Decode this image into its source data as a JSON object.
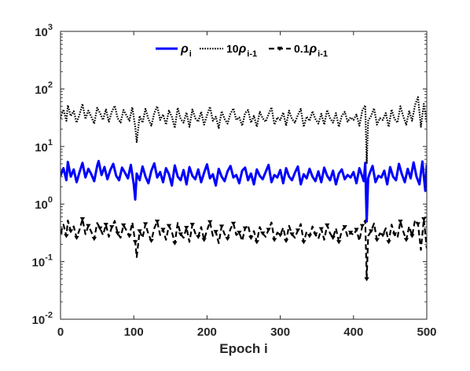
{
  "chart_data": {
    "type": "line",
    "title": "",
    "xlabel": "Epoch i",
    "ylabel": "",
    "xlim": [
      0,
      500
    ],
    "ylim": [
      0.01,
      1000
    ],
    "yscale": "log",
    "grid": false,
    "legend_position": "top-center",
    "x_ticks": [
      "0",
      "100",
      "200",
      "300",
      "400",
      "500"
    ],
    "y_ticks": [
      {
        "base": "10",
        "exp": "-2"
      },
      {
        "base": "10",
        "exp": "-1"
      },
      {
        "base": "10",
        "exp": "0"
      },
      {
        "base": "10",
        "exp": "1"
      },
      {
        "base": "10",
        "exp": "2"
      },
      {
        "base": "10",
        "exp": "3"
      }
    ],
    "series": [
      {
        "name": "ρ_i",
        "legend_symbol": "ρ",
        "legend_sub": "i",
        "legend_prefix": "",
        "color": "#0000ff",
        "style": "solid",
        "width": 3,
        "marker": "none",
        "typical_value": 3.0,
        "x": [
          0,
          4,
          8,
          10,
          14,
          18,
          22,
          26,
          30,
          34,
          38,
          42,
          46,
          50,
          52,
          56,
          60,
          64,
          68,
          72,
          76,
          80,
          84,
          88,
          92,
          96,
          100,
          102,
          104,
          108,
          112,
          116,
          120,
          124,
          128,
          132,
          136,
          140,
          144,
          148,
          152,
          156,
          160,
          164,
          168,
          172,
          176,
          180,
          184,
          188,
          192,
          196,
          200,
          204,
          208,
          212,
          216,
          220,
          224,
          228,
          232,
          236,
          240,
          244,
          248,
          252,
          256,
          260,
          264,
          268,
          272,
          276,
          280,
          284,
          288,
          292,
          296,
          300,
          304,
          308,
          312,
          316,
          320,
          324,
          328,
          332,
          336,
          340,
          344,
          348,
          352,
          356,
          360,
          364,
          368,
          372,
          376,
          380,
          384,
          388,
          392,
          396,
          400,
          404,
          408,
          412,
          414,
          416,
          418,
          420,
          422,
          426,
          430,
          434,
          438,
          442,
          446,
          450,
          454,
          458,
          462,
          466,
          470,
          474,
          478,
          482,
          486,
          490,
          494,
          498,
          500
        ],
        "y": [
          3.1,
          4.2,
          2.6,
          5.4,
          3.0,
          4.0,
          2.4,
          3.6,
          5.2,
          2.9,
          4.1,
          3.3,
          2.5,
          4.6,
          5.6,
          3.2,
          4.4,
          2.7,
          3.9,
          5.0,
          3.1,
          2.6,
          4.3,
          3.5,
          2.8,
          4.8,
          2.2,
          1.2,
          3.4,
          2.6,
          4.5,
          3.0,
          2.3,
          3.8,
          5.1,
          2.9,
          3.6,
          2.4,
          4.2,
          3.3,
          2.1,
          4.7,
          3.0,
          2.6,
          3.9,
          2.2,
          4.4,
          3.1,
          2.7,
          4.0,
          2.4,
          3.5,
          4.9,
          2.8,
          3.3,
          2.1,
          4.1,
          3.0,
          2.5,
          3.7,
          4.6,
          2.9,
          3.2,
          2.3,
          3.8,
          4.3,
          2.6,
          3.4,
          2.2,
          4.0,
          3.1,
          2.7,
          3.6,
          4.8,
          2.4,
          3.2,
          2.9,
          3.9,
          2.3,
          4.2,
          3.0,
          2.6,
          3.5,
          4.5,
          2.2,
          3.3,
          2.8,
          4.1,
          3.0,
          2.5,
          3.7,
          2.4,
          4.3,
          3.1,
          2.6,
          3.8,
          2.2,
          3.4,
          4.0,
          2.7,
          3.2,
          2.9,
          3.6,
          2.3,
          4.2,
          3.0,
          2.5,
          5.2,
          0.5,
          2.8,
          3.4,
          4.6,
          2.4,
          3.1,
          2.9,
          3.8,
          2.2,
          4.4,
          3.0,
          2.6,
          5.0,
          3.3,
          2.4,
          4.1,
          2.8,
          5.3,
          3.0,
          2.2,
          5.5,
          1.7,
          4.8
        ]
      },
      {
        "name": "10ρ_{i-1}",
        "legend_symbol": "ρ",
        "legend_sub": "i-1",
        "legend_prefix": "10",
        "color": "#000000",
        "style": "dotted",
        "width": 2.2,
        "marker": "none",
        "typical_value": 30,
        "x": [
          0,
          4,
          8,
          10,
          14,
          18,
          22,
          26,
          30,
          34,
          38,
          42,
          46,
          50,
          54,
          58,
          62,
          66,
          70,
          74,
          78,
          82,
          86,
          90,
          94,
          98,
          102,
          104,
          108,
          112,
          116,
          120,
          124,
          128,
          132,
          136,
          140,
          144,
          148,
          152,
          156,
          160,
          164,
          168,
          172,
          176,
          180,
          184,
          188,
          192,
          196,
          200,
          204,
          208,
          212,
          216,
          220,
          224,
          228,
          232,
          236,
          240,
          244,
          248,
          252,
          256,
          260,
          264,
          268,
          272,
          276,
          280,
          284,
          288,
          292,
          296,
          300,
          304,
          308,
          312,
          316,
          320,
          324,
          328,
          332,
          336,
          340,
          344,
          348,
          352,
          356,
          360,
          364,
          368,
          372,
          376,
          380,
          384,
          388,
          392,
          396,
          400,
          404,
          408,
          412,
          416,
          418,
          420,
          424,
          428,
          432,
          436,
          440,
          444,
          448,
          452,
          456,
          460,
          464,
          468,
          472,
          476,
          480,
          484,
          488,
          492,
          496,
          500
        ],
        "y": [
          31,
          44,
          28,
          52,
          34,
          41,
          26,
          36,
          55,
          30,
          42,
          33,
          25,
          47,
          38,
          29,
          44,
          27,
          40,
          51,
          31,
          26,
          43,
          35,
          28,
          48,
          22,
          12,
          34,
          26,
          45,
          30,
          23,
          38,
          50,
          29,
          36,
          24,
          42,
          33,
          21,
          47,
          30,
          26,
          39,
          22,
          44,
          31,
          27,
          40,
          24,
          35,
          49,
          28,
          33,
          21,
          41,
          30,
          25,
          37,
          46,
          29,
          32,
          23,
          38,
          43,
          26,
          34,
          22,
          40,
          31,
          27,
          36,
          48,
          24,
          32,
          29,
          39,
          23,
          42,
          30,
          26,
          35,
          45,
          22,
          33,
          28,
          41,
          30,
          25,
          37,
          24,
          43,
          31,
          26,
          38,
          22,
          34,
          40,
          27,
          32,
          29,
          36,
          23,
          42,
          52,
          5,
          28,
          34,
          46,
          24,
          31,
          29,
          38,
          22,
          44,
          30,
          26,
          50,
          33,
          24,
          41,
          28,
          53,
          72,
          22,
          55,
          26
        ]
      },
      {
        "name": "0.1ρ_{i-1}",
        "legend_symbol": "ρ",
        "legend_sub": "i-1",
        "legend_prefix": "0.1",
        "color": "#000000",
        "style": "dashed",
        "width": 2.2,
        "marker": "triangle-down",
        "typical_value": 0.3,
        "x": [
          0,
          4,
          8,
          10,
          14,
          18,
          22,
          26,
          30,
          34,
          38,
          42,
          46,
          50,
          54,
          58,
          62,
          66,
          70,
          74,
          78,
          82,
          86,
          90,
          94,
          98,
          102,
          104,
          108,
          112,
          116,
          120,
          124,
          128,
          132,
          136,
          140,
          144,
          148,
          152,
          156,
          160,
          164,
          168,
          172,
          176,
          180,
          184,
          188,
          192,
          196,
          200,
          204,
          208,
          212,
          216,
          220,
          224,
          228,
          232,
          236,
          240,
          244,
          248,
          252,
          256,
          260,
          264,
          268,
          272,
          276,
          280,
          284,
          288,
          292,
          296,
          300,
          304,
          308,
          312,
          316,
          320,
          324,
          328,
          332,
          336,
          340,
          344,
          348,
          352,
          356,
          360,
          364,
          368,
          372,
          376,
          380,
          384,
          388,
          392,
          396,
          400,
          404,
          408,
          412,
          416,
          418,
          420,
          424,
          428,
          432,
          436,
          440,
          444,
          448,
          452,
          456,
          460,
          464,
          468,
          472,
          476,
          480,
          484,
          488,
          492,
          496,
          500
        ],
        "y": [
          0.31,
          0.44,
          0.28,
          0.52,
          0.34,
          0.41,
          0.26,
          0.36,
          0.55,
          0.3,
          0.42,
          0.33,
          0.25,
          0.47,
          0.38,
          0.29,
          0.44,
          0.27,
          0.4,
          0.51,
          0.31,
          0.26,
          0.43,
          0.35,
          0.28,
          0.48,
          0.22,
          0.12,
          0.34,
          0.26,
          0.45,
          0.3,
          0.23,
          0.38,
          0.5,
          0.29,
          0.36,
          0.24,
          0.42,
          0.33,
          0.21,
          0.47,
          0.3,
          0.26,
          0.39,
          0.22,
          0.44,
          0.31,
          0.27,
          0.4,
          0.24,
          0.35,
          0.49,
          0.28,
          0.33,
          0.21,
          0.41,
          0.3,
          0.25,
          0.37,
          0.46,
          0.29,
          0.32,
          0.23,
          0.38,
          0.43,
          0.26,
          0.34,
          0.22,
          0.4,
          0.31,
          0.27,
          0.36,
          0.48,
          0.24,
          0.32,
          0.29,
          0.39,
          0.23,
          0.42,
          0.3,
          0.26,
          0.35,
          0.45,
          0.22,
          0.33,
          0.28,
          0.41,
          0.3,
          0.25,
          0.37,
          0.24,
          0.43,
          0.31,
          0.26,
          0.38,
          0.22,
          0.34,
          0.4,
          0.27,
          0.32,
          0.29,
          0.36,
          0.23,
          0.42,
          0.52,
          0.05,
          0.28,
          0.34,
          0.46,
          0.24,
          0.31,
          0.29,
          0.38,
          0.22,
          0.44,
          0.3,
          0.26,
          0.5,
          0.33,
          0.24,
          0.41,
          0.28,
          0.53,
          0.45,
          0.16,
          0.55,
          0.17
        ]
      }
    ]
  }
}
